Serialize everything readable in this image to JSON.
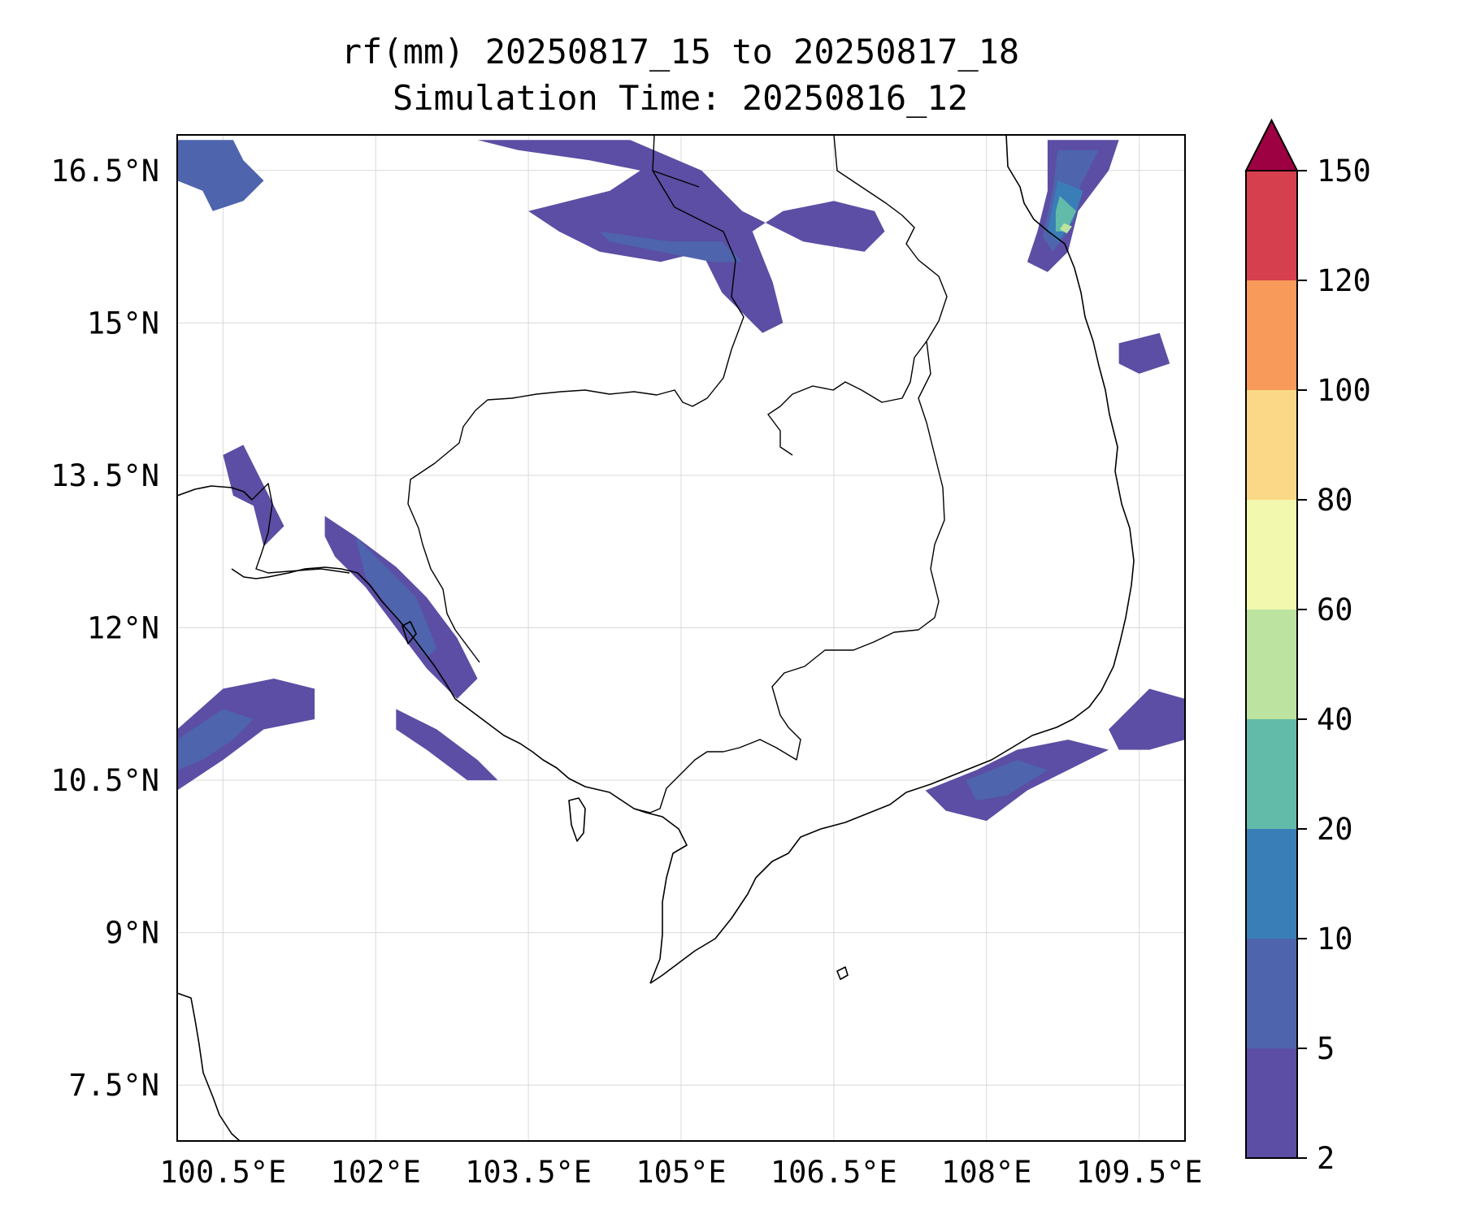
{
  "title": {
    "line1": "rf(mm) 20250817_15 to 20250817_18",
    "line2": "Simulation Time: 20250816_12"
  },
  "map": {
    "lon_range": [
      100.05,
      109.95
    ],
    "lat_range": [
      6.95,
      16.85
    ],
    "lon_ticks": [
      {
        "value": 100.5,
        "label": "100.5°E"
      },
      {
        "value": 102.0,
        "label": "102°E"
      },
      {
        "value": 103.5,
        "label": "103.5°E"
      },
      {
        "value": 105.0,
        "label": "105°E"
      },
      {
        "value": 106.5,
        "label": "106.5°E"
      },
      {
        "value": 108.0,
        "label": "108°E"
      },
      {
        "value": 109.5,
        "label": "109.5°E"
      }
    ],
    "lat_ticks": [
      {
        "value": 16.5,
        "label": "16.5°N"
      },
      {
        "value": 15.0,
        "label": "15°N"
      },
      {
        "value": 13.5,
        "label": "13.5°N"
      },
      {
        "value": 12.0,
        "label": "12°N"
      },
      {
        "value": 10.5,
        "label": "10.5°N"
      },
      {
        "value": 9.0,
        "label": "9°N"
      },
      {
        "value": 7.5,
        "label": "7.5°N"
      }
    ],
    "gridlines": true
  },
  "colorbar": {
    "levels": [
      2,
      5,
      10,
      20,
      40,
      60,
      80,
      100,
      120,
      150
    ],
    "labels": [
      "2",
      "5",
      "10",
      "20",
      "40",
      "60",
      "80",
      "100",
      "120",
      "150"
    ],
    "colors": [
      "#5b4ea4",
      "#4e64ad",
      "#3a7eb8",
      "#62bba9",
      "#bde3a1",
      "#f2f8ad",
      "#fbd887",
      "#f79a5a",
      "#d63f4e"
    ],
    "extend_color": "#9e0142",
    "extend": "max"
  },
  "chart_data": {
    "type": "contourf",
    "variable": "rf(mm)",
    "period": "20250817_15 to 20250817_18",
    "simulation_time": "20250816_12",
    "levels": [
      2,
      5,
      10,
      20,
      40,
      60,
      80,
      100,
      120,
      150
    ],
    "rain_areas": [
      {
        "level_index": 1,
        "pts": [
          [
            100.05,
            16.8
          ],
          [
            100.6,
            16.8
          ],
          [
            100.7,
            16.6
          ],
          [
            100.9,
            16.4
          ],
          [
            100.7,
            16.2
          ],
          [
            100.4,
            16.1
          ],
          [
            100.3,
            16.3
          ],
          [
            100.05,
            16.4
          ]
        ]
      },
      {
        "level_index": 0,
        "pts": [
          [
            103.0,
            16.8
          ],
          [
            104.5,
            16.8
          ],
          [
            105.2,
            16.5
          ],
          [
            105.6,
            16.1
          ],
          [
            106.2,
            15.8
          ],
          [
            106.8,
            15.7
          ],
          [
            107.0,
            15.9
          ],
          [
            106.9,
            16.1
          ],
          [
            106.5,
            16.2
          ],
          [
            106.0,
            16.1
          ],
          [
            105.7,
            15.9
          ],
          [
            105.9,
            15.4
          ],
          [
            106.0,
            15.0
          ],
          [
            105.8,
            14.9
          ],
          [
            105.4,
            15.3
          ],
          [
            105.2,
            15.7
          ],
          [
            104.8,
            15.6
          ],
          [
            104.2,
            15.7
          ],
          [
            103.8,
            15.9
          ],
          [
            103.5,
            16.1
          ],
          [
            103.9,
            16.2
          ],
          [
            104.3,
            16.3
          ],
          [
            104.6,
            16.5
          ],
          [
            104.1,
            16.6
          ],
          [
            103.4,
            16.7
          ]
        ]
      },
      {
        "level_index": 1,
        "pts": [
          [
            104.2,
            15.9
          ],
          [
            104.9,
            15.8
          ],
          [
            105.4,
            15.8
          ],
          [
            105.6,
            15.6
          ],
          [
            105.3,
            15.6
          ],
          [
            104.8,
            15.7
          ],
          [
            104.3,
            15.8
          ]
        ]
      },
      {
        "level_index": 0,
        "pts": [
          [
            108.6,
            16.8
          ],
          [
            109.3,
            16.8
          ],
          [
            109.2,
            16.5
          ],
          [
            108.9,
            16.1
          ],
          [
            108.8,
            15.7
          ],
          [
            108.6,
            15.5
          ],
          [
            108.4,
            15.6
          ],
          [
            108.5,
            15.9
          ],
          [
            108.6,
            16.3
          ]
        ]
      },
      {
        "level_index": 1,
        "pts": [
          [
            108.7,
            16.7
          ],
          [
            109.1,
            16.7
          ],
          [
            108.9,
            16.3
          ],
          [
            108.8,
            15.9
          ],
          [
            108.65,
            15.7
          ],
          [
            108.55,
            15.85
          ],
          [
            108.65,
            16.3
          ]
        ]
      },
      {
        "level_index": 2,
        "pts": [
          [
            108.7,
            16.4
          ],
          [
            108.95,
            16.3
          ],
          [
            108.85,
            16.0
          ],
          [
            108.7,
            15.8
          ],
          [
            108.6,
            15.9
          ],
          [
            108.65,
            16.15
          ]
        ]
      },
      {
        "level_index": 3,
        "pts": [
          [
            108.72,
            16.25
          ],
          [
            108.88,
            16.1
          ],
          [
            108.78,
            15.9
          ],
          [
            108.68,
            15.9
          ],
          [
            108.68,
            16.1
          ]
        ]
      },
      {
        "level_index": 4,
        "pts": [
          [
            108.76,
            15.98
          ],
          [
            108.84,
            15.95
          ],
          [
            108.79,
            15.88
          ],
          [
            108.72,
            15.92
          ]
        ]
      },
      {
        "level_index": 0,
        "pts": [
          [
            100.5,
            13.7
          ],
          [
            100.7,
            13.8
          ],
          [
            100.9,
            13.4
          ],
          [
            101.1,
            13.0
          ],
          [
            100.9,
            12.8
          ],
          [
            100.8,
            13.2
          ],
          [
            100.6,
            13.3
          ]
        ]
      },
      {
        "level_index": 0,
        "pts": [
          [
            101.5,
            13.1
          ],
          [
            101.8,
            12.9
          ],
          [
            102.2,
            12.6
          ],
          [
            102.5,
            12.3
          ],
          [
            102.8,
            11.9
          ],
          [
            103.0,
            11.5
          ],
          [
            102.8,
            11.3
          ],
          [
            102.5,
            11.6
          ],
          [
            102.2,
            12.0
          ],
          [
            101.9,
            12.4
          ],
          [
            101.6,
            12.7
          ],
          [
            101.5,
            12.9
          ]
        ]
      },
      {
        "level_index": 1,
        "pts": [
          [
            101.8,
            12.9
          ],
          [
            102.1,
            12.6
          ],
          [
            102.4,
            12.3
          ],
          [
            102.6,
            11.8
          ],
          [
            102.5,
            11.7
          ],
          [
            102.2,
            12.1
          ],
          [
            101.9,
            12.5
          ]
        ]
      },
      {
        "level_index": 0,
        "pts": [
          [
            102.2,
            11.2
          ],
          [
            102.6,
            11.0
          ],
          [
            103.0,
            10.7
          ],
          [
            103.2,
            10.5
          ],
          [
            102.9,
            10.5
          ],
          [
            102.5,
            10.8
          ],
          [
            102.2,
            11.0
          ]
        ]
      },
      {
        "level_index": 0,
        "pts": [
          [
            100.05,
            11.0
          ],
          [
            100.5,
            11.4
          ],
          [
            101.0,
            11.5
          ],
          [
            101.4,
            11.4
          ],
          [
            101.4,
            11.1
          ],
          [
            100.9,
            11.0
          ],
          [
            100.5,
            10.7
          ],
          [
            100.05,
            10.4
          ]
        ]
      },
      {
        "level_index": 1,
        "pts": [
          [
            100.05,
            10.9
          ],
          [
            100.5,
            11.2
          ],
          [
            100.8,
            11.1
          ],
          [
            100.6,
            10.9
          ],
          [
            100.3,
            10.7
          ],
          [
            100.05,
            10.6
          ]
        ]
      },
      {
        "level_index": 0,
        "pts": [
          [
            107.4,
            10.4
          ],
          [
            107.9,
            10.6
          ],
          [
            108.3,
            10.8
          ],
          [
            108.8,
            10.9
          ],
          [
            109.2,
            10.8
          ],
          [
            108.8,
            10.6
          ],
          [
            108.4,
            10.4
          ],
          [
            108.0,
            10.1
          ],
          [
            107.6,
            10.2
          ]
        ]
      },
      {
        "level_index": 1,
        "pts": [
          [
            107.8,
            10.5
          ],
          [
            108.3,
            10.7
          ],
          [
            108.6,
            10.6
          ],
          [
            108.2,
            10.35
          ],
          [
            107.9,
            10.3
          ]
        ]
      },
      {
        "level_index": 0,
        "pts": [
          [
            109.2,
            11.0
          ],
          [
            109.6,
            11.4
          ],
          [
            109.95,
            11.3
          ],
          [
            109.95,
            10.9
          ],
          [
            109.6,
            10.8
          ],
          [
            109.3,
            10.8
          ]
        ]
      },
      {
        "level_index": 0,
        "pts": [
          [
            109.3,
            14.8
          ],
          [
            109.7,
            14.9
          ],
          [
            109.8,
            14.6
          ],
          [
            109.5,
            14.5
          ],
          [
            109.3,
            14.6
          ]
        ]
      }
    ]
  }
}
